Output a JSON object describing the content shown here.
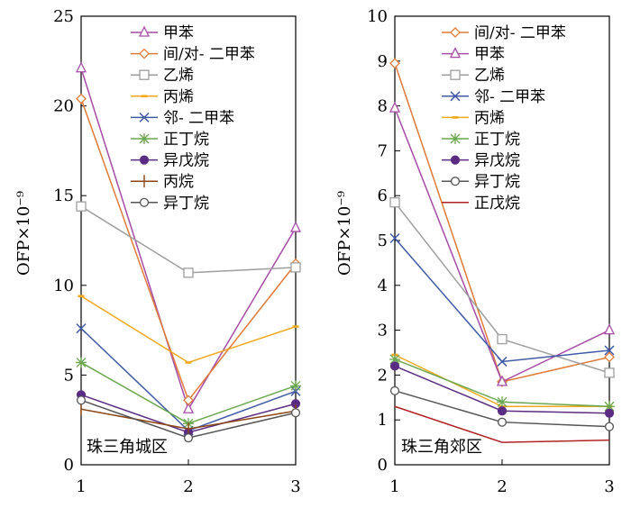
{
  "chart_data": [
    {
      "type": "line",
      "panel_label": "珠三角城区",
      "ylabel": "OFP×10⁻⁹",
      "xlabel": "",
      "x": [
        1,
        2,
        3
      ],
      "ylim": [
        0,
        25
      ],
      "yticks": [
        0,
        5,
        10,
        15,
        20,
        25
      ],
      "legend_position": "top-right",
      "series": [
        {
          "name": "甲苯",
          "values": [
            22.1,
            3.1,
            13.2
          ],
          "color": "#a64ca6",
          "marker": "triangle"
        },
        {
          "name": "间/对- 二甲苯",
          "values": [
            20.4,
            3.6,
            11.2
          ],
          "color": "#e07b39",
          "marker": "diamond"
        },
        {
          "name": "乙烯",
          "values": [
            14.4,
            10.7,
            11.0
          ],
          "color": "#9e9e9e",
          "marker": "square"
        },
        {
          "name": "丙烯",
          "values": [
            9.4,
            5.7,
            7.7
          ],
          "color": "#f2a81d",
          "marker": "dash"
        },
        {
          "name": "邻- 二甲苯",
          "values": [
            7.6,
            1.9,
            4.1
          ],
          "color": "#3f5aa6",
          "marker": "x"
        },
        {
          "name": "正丁烷",
          "values": [
            5.7,
            2.3,
            4.4
          ],
          "color": "#6aa84f",
          "marker": "star"
        },
        {
          "name": "异戊烷",
          "values": [
            3.9,
            1.8,
            3.4
          ],
          "color": "#5b2c83",
          "marker": "dot"
        },
        {
          "name": "丙烷",
          "values": [
            3.1,
            2.0,
            3.0
          ],
          "color": "#8b4513",
          "marker": "plus"
        },
        {
          "name": "异丁烷",
          "values": [
            3.6,
            1.5,
            2.9
          ],
          "color": "#555555",
          "marker": "circle"
        }
      ]
    },
    {
      "type": "line",
      "panel_label": "珠三角郊区",
      "ylabel": "OFP×10⁻⁹",
      "xlabel": "",
      "x": [
        1,
        2,
        3
      ],
      "ylim": [
        0,
        10
      ],
      "yticks": [
        0,
        1,
        2,
        3,
        4,
        5,
        6,
        7,
        8,
        9,
        10
      ],
      "legend_position": "top-right",
      "series": [
        {
          "name": "间/对- 二甲苯",
          "values": [
            8.95,
            1.85,
            2.4
          ],
          "color": "#e07b39",
          "marker": "diamond"
        },
        {
          "name": "甲苯",
          "values": [
            7.95,
            1.85,
            3.0
          ],
          "color": "#a64ca6",
          "marker": "triangle"
        },
        {
          "name": "乙烯",
          "values": [
            5.85,
            2.8,
            2.05
          ],
          "color": "#9e9e9e",
          "marker": "square"
        },
        {
          "name": "邻- 二甲苯",
          "values": [
            5.05,
            2.3,
            2.55
          ],
          "color": "#3f5aa6",
          "marker": "x"
        },
        {
          "name": "丙烯",
          "values": [
            2.45,
            1.3,
            1.3
          ],
          "color": "#f2a81d",
          "marker": "dash"
        },
        {
          "name": "正丁烷",
          "values": [
            2.35,
            1.4,
            1.3
          ],
          "color": "#6aa84f",
          "marker": "star"
        },
        {
          "name": "异戊烷",
          "values": [
            2.2,
            1.2,
            1.15
          ],
          "color": "#5b2c83",
          "marker": "dot"
        },
        {
          "name": "异丁烷",
          "values": [
            1.65,
            0.95,
            0.85
          ],
          "color": "#555555",
          "marker": "circle"
        },
        {
          "name": "正戊烷",
          "values": [
            1.3,
            0.5,
            0.55
          ],
          "color": "#b22222",
          "marker": "none"
        }
      ]
    }
  ]
}
